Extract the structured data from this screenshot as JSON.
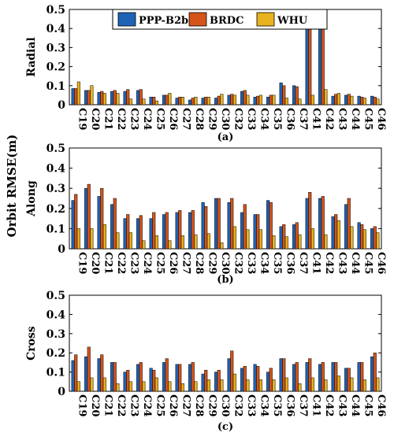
{
  "figure": {
    "shared_ylabel": "Orbit RMSE(m)",
    "legend": [
      {
        "name": "PPP-B2b",
        "color": "#1f63b6"
      },
      {
        "name": "BRDC",
        "color": "#d4541a"
      },
      {
        "name": "WHU",
        "color": "#e8b21f"
      }
    ]
  },
  "chart_data": [
    {
      "type": "bar",
      "panel": "(a)",
      "ylabel": "Radial",
      "ylim": [
        0,
        0.5
      ],
      "yticks": [
        "0",
        "0.1",
        "0.2",
        "0.3",
        "0.4",
        "0.5"
      ],
      "categories": [
        "C19",
        "C20",
        "C21",
        "C22",
        "C23",
        "C24",
        "C25",
        "C26",
        "C27",
        "C28",
        "C29",
        "C30",
        "C32",
        "C33",
        "C34",
        "C35",
        "C36",
        "C37",
        "C41",
        "C42",
        "C43",
        "C44",
        "C45",
        "C46"
      ],
      "legend_position": "top",
      "grid": false,
      "series": [
        {
          "name": "PPP-B2b",
          "values": [
            0.085,
            0.075,
            0.065,
            0.07,
            0.07,
            0.075,
            0.04,
            0.05,
            0.035,
            0.025,
            0.035,
            0.035,
            0.05,
            0.07,
            0.04,
            0.04,
            0.115,
            0.1,
            0.5,
            0.5,
            0.045,
            0.05,
            0.045,
            0.045
          ]
        },
        {
          "name": "BRDC",
          "values": [
            0.085,
            0.075,
            0.07,
            0.075,
            0.08,
            0.08,
            0.04,
            0.05,
            0.04,
            0.035,
            0.04,
            0.045,
            0.055,
            0.075,
            0.045,
            0.05,
            0.1,
            0.095,
            0.5,
            0.5,
            0.055,
            0.055,
            0.04,
            0.04
          ]
        },
        {
          "name": "WHU",
          "values": [
            0.12,
            0.1,
            0.06,
            0.06,
            0.03,
            0.03,
            0.02,
            0.06,
            0.04,
            0.04,
            0.04,
            0.055,
            0.05,
            0.05,
            0.05,
            0.05,
            0.035,
            0.03,
            0.05,
            0.08,
            0.06,
            0.045,
            0.035,
            0.03
          ]
        }
      ]
    },
    {
      "type": "bar",
      "panel": "(b)",
      "ylabel": "Along",
      "ylim": [
        0,
        0.5
      ],
      "yticks": [
        "0",
        "0.1",
        "0.2",
        "0.3",
        "0.4",
        "0.5"
      ],
      "categories": [
        "C19",
        "C20",
        "C21",
        "C22",
        "C23",
        "C24",
        "C25",
        "C26",
        "C27",
        "C28",
        "C29",
        "C30",
        "C32",
        "C33",
        "C34",
        "C35",
        "C36",
        "C37",
        "C41",
        "C42",
        "C43",
        "C44",
        "C45",
        "C46"
      ],
      "grid": false,
      "series": [
        {
          "name": "PPP-B2b",
          "values": [
            0.24,
            0.3,
            0.26,
            0.22,
            0.15,
            0.15,
            0.15,
            0.17,
            0.18,
            0.18,
            0.23,
            0.25,
            0.23,
            0.18,
            0.17,
            0.24,
            0.11,
            0.12,
            0.25,
            0.25,
            0.16,
            0.22,
            0.13,
            0.1
          ]
        },
        {
          "name": "BRDC",
          "values": [
            0.27,
            0.32,
            0.3,
            0.25,
            0.17,
            0.165,
            0.18,
            0.18,
            0.19,
            0.19,
            0.21,
            0.25,
            0.25,
            0.22,
            0.17,
            0.23,
            0.12,
            0.13,
            0.28,
            0.26,
            0.17,
            0.25,
            0.12,
            0.11
          ]
        },
        {
          "name": "WHU",
          "values": [
            0.1,
            0.1,
            0.12,
            0.08,
            0.08,
            0.04,
            0.065,
            0.04,
            0.065,
            0.07,
            0.075,
            0.03,
            0.11,
            0.095,
            0.095,
            0.065,
            0.06,
            0.07,
            0.1,
            0.07,
            0.14,
            0.11,
            0.095,
            0.08
          ]
        }
      ]
    },
    {
      "type": "bar",
      "panel": "(c)",
      "ylabel": "Cross",
      "ylim": [
        0,
        0.5
      ],
      "yticks": [
        "0",
        "0.1",
        "0.2",
        "0.3",
        "0.4",
        "0.5"
      ],
      "categories": [
        "C19",
        "C20",
        "C21",
        "C22",
        "C23",
        "C24",
        "C25",
        "C26",
        "C27",
        "C28",
        "C29",
        "C30",
        "C32",
        "C33",
        "C34",
        "C35",
        "C36",
        "C37",
        "C41",
        "C42",
        "C43",
        "C44",
        "C45",
        "C46"
      ],
      "grid": false,
      "series": [
        {
          "name": "PPP-B2b",
          "values": [
            0.16,
            0.18,
            0.17,
            0.15,
            0.1,
            0.14,
            0.12,
            0.15,
            0.14,
            0.14,
            0.09,
            0.1,
            0.17,
            0.12,
            0.14,
            0.1,
            0.17,
            0.14,
            0.15,
            0.14,
            0.15,
            0.12,
            0.15,
            0.18
          ]
        },
        {
          "name": "BRDC",
          "values": [
            0.19,
            0.23,
            0.19,
            0.15,
            0.11,
            0.15,
            0.11,
            0.17,
            0.14,
            0.15,
            0.11,
            0.11,
            0.21,
            0.13,
            0.13,
            0.12,
            0.17,
            0.15,
            0.17,
            0.15,
            0.15,
            0.12,
            0.15,
            0.2
          ]
        },
        {
          "name": "WHU",
          "values": [
            0.05,
            0.07,
            0.07,
            0.04,
            0.05,
            0.05,
            0.07,
            0.05,
            0.04,
            0.05,
            0.06,
            0.06,
            0.09,
            0.06,
            0.06,
            0.06,
            0.07,
            0.04,
            0.07,
            0.06,
            0.08,
            0.07,
            0.06,
            0.07
          ]
        }
      ]
    }
  ]
}
